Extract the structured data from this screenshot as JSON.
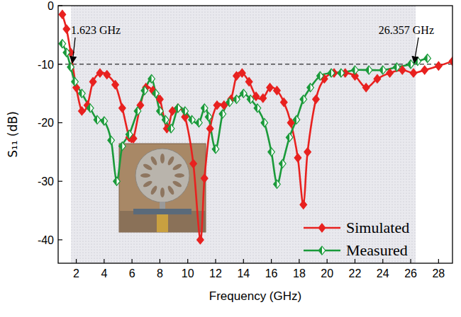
{
  "chart_data": {
    "type": "line",
    "x_label": "Frequency (GHz)",
    "y_label": "S₁₁ (dB)",
    "xlim": [
      0.7,
      29
    ],
    "ylim": [
      -44,
      0
    ],
    "xticks": [
      2,
      4,
      6,
      8,
      10,
      12,
      14,
      16,
      18,
      20,
      22,
      24,
      26,
      28
    ],
    "yticks": [
      0,
      -10,
      -20,
      -30,
      -40
    ],
    "grid": false,
    "legend": "lower right",
    "threshold": -10,
    "band": [
      1.623,
      26.357
    ],
    "annotations": [
      {
        "text": "1.623 GHz",
        "x": 1.623,
        "y": -10
      },
      {
        "text": "26.357 GHz",
        "x": 26.357,
        "y": -10
      }
    ],
    "series": [
      {
        "name": "Simulated",
        "color": "#e8211f",
        "marker": "diamond",
        "line_style": "solid",
        "x": [
          1.0,
          1.3,
          1.6,
          2.0,
          2.4,
          2.8,
          3.2,
          3.7,
          4.2,
          4.8,
          5.3,
          5.8,
          6.1,
          6.6,
          7.0,
          7.5,
          8.0,
          8.5,
          8.9,
          9.3,
          9.8,
          10.4,
          10.9,
          11.2,
          11.6,
          12.1,
          12.6,
          13.1,
          13.5,
          13.9,
          14.4,
          14.9,
          15.4,
          15.9,
          16.4,
          16.9,
          17.4,
          17.9,
          18.3,
          18.6,
          19.2,
          19.8,
          20.5,
          21.3,
          22.0,
          22.8,
          23.6,
          24.5,
          25.4,
          26.2,
          27.0,
          28.0,
          29.0
        ],
        "values": [
          -1.5,
          -4,
          -8,
          -14,
          -18,
          -17,
          -13,
          -11.5,
          -11.8,
          -13.5,
          -17.5,
          -22.5,
          -22.7,
          -17,
          -14,
          -14.5,
          -16,
          -21,
          -18,
          -17.5,
          -19,
          -27,
          -40,
          -29.5,
          -21,
          -17,
          -17,
          -16,
          -12,
          -11.5,
          -13,
          -15.5,
          -15.8,
          -14,
          -14.5,
          -16.5,
          -20,
          -26,
          -34,
          -25,
          -16,
          -12.5,
          -11.5,
          -11.5,
          -12,
          -14,
          -12.5,
          -11.5,
          -11,
          -11.5,
          -11,
          -10.3,
          -9.5
        ]
      },
      {
        "name": "Measured",
        "color": "#1a9a3a",
        "marker": "diamond",
        "line_style": "solid",
        "x": [
          1.0,
          1.3,
          1.6,
          1.9,
          2.4,
          3.0,
          3.5,
          4.0,
          4.5,
          4.9,
          5.3,
          5.8,
          6.4,
          6.9,
          7.4,
          7.7,
          8.0,
          8.4,
          8.8,
          9.3,
          9.8,
          10.3,
          10.8,
          11.2,
          11.5,
          12.0,
          12.5,
          13.0,
          13.5,
          14.0,
          14.5,
          15.0,
          15.5,
          16.0,
          16.4,
          16.8,
          17.3,
          17.8,
          18.3,
          18.8,
          19.5,
          20.3,
          21.0,
          22.0,
          23.0,
          24.0,
          25.0,
          26.0,
          26.5,
          27.2
        ],
        "values": [
          -6.5,
          -8,
          -10.5,
          -13,
          -15,
          -17.5,
          -19.5,
          -19.7,
          -23,
          -30,
          -24,
          -22,
          -18,
          -14.5,
          -12.5,
          -15,
          -18,
          -19.5,
          -21,
          -17.5,
          -18,
          -19.5,
          -20,
          -17.5,
          -19,
          -24.5,
          -18.5,
          -16.5,
          -16,
          -15,
          -16,
          -17.5,
          -20,
          -25,
          -30.5,
          -27,
          -22.5,
          -19.5,
          -16,
          -14,
          -12,
          -11.5,
          -11.5,
          -11,
          -11,
          -11,
          -10.5,
          -10,
          -9.5,
          -9
        ]
      }
    ]
  }
}
